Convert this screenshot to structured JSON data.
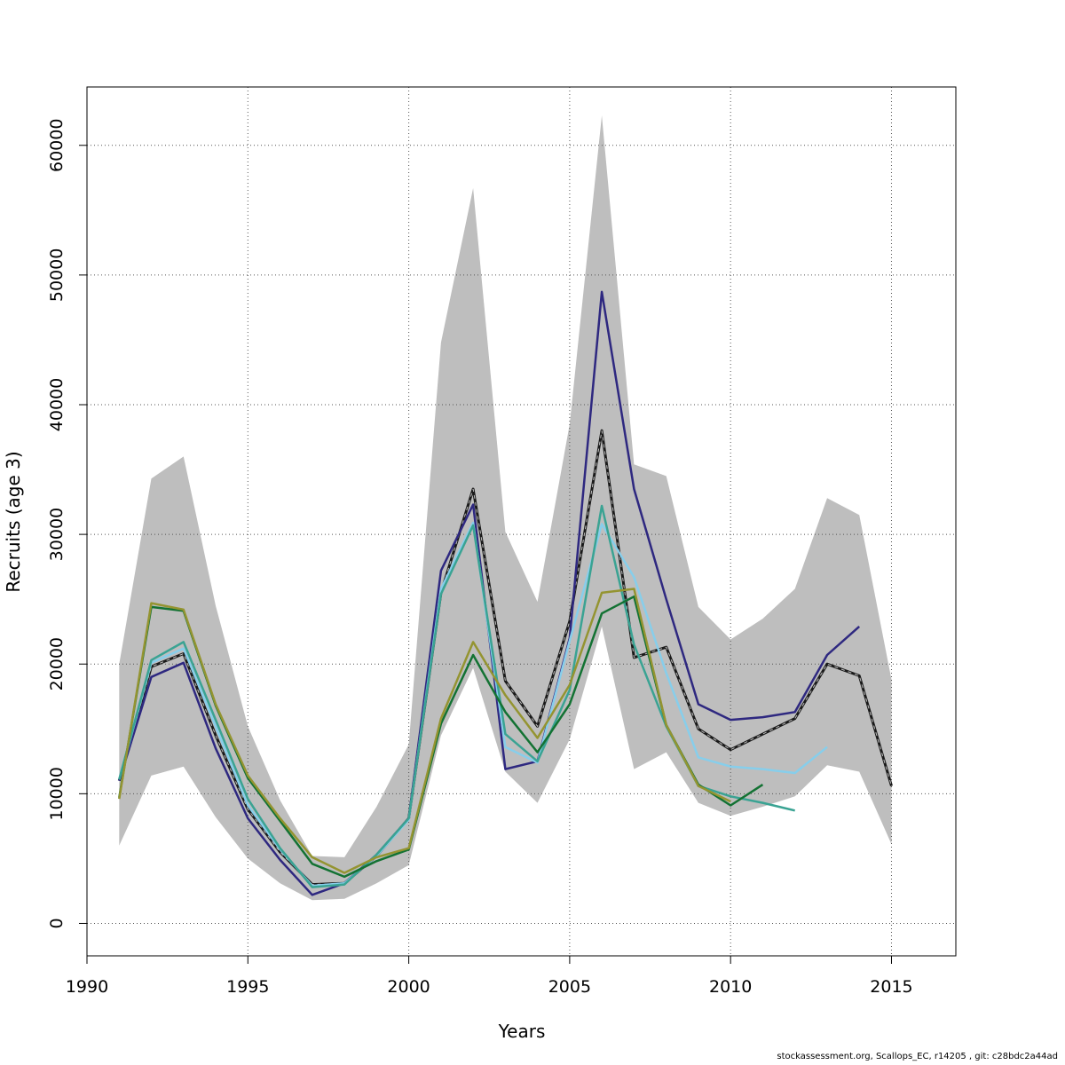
{
  "chart_data": {
    "type": "line",
    "xlabel": "Years",
    "ylabel": "Recruits (age 3)",
    "xlim": [
      1990,
      2017
    ],
    "ylim": [
      -2500,
      64500
    ],
    "x_ticks": [
      1990,
      1995,
      2000,
      2005,
      2010,
      2015
    ],
    "y_ticks": [
      0,
      10000,
      20000,
      30000,
      40000,
      50000,
      60000
    ],
    "grid": true,
    "grid_style": "dotted",
    "band": {
      "fill_color": "#bebebe",
      "x": [
        1991,
        1992,
        1993,
        1994,
        1995,
        1996,
        1997,
        1998,
        1999,
        2000,
        2001,
        2002,
        2003,
        2004,
        2005,
        2006,
        2007,
        2008,
        2009,
        2010,
        2011,
        2012,
        2013,
        2014,
        2015
      ],
      "upper": [
        20000,
        34300,
        36000,
        24500,
        15200,
        9500,
        5200,
        5100,
        9000,
        13800,
        44800,
        56700,
        30200,
        24800,
        38500,
        62300,
        35400,
        34500,
        24400,
        21900,
        23500,
        25800,
        32800,
        31500,
        18800
      ],
      "lower": [
        6000,
        11400,
        12100,
        8200,
        5000,
        3100,
        1800,
        1900,
        3100,
        4500,
        14500,
        19700,
        11700,
        9300,
        14200,
        22900,
        11900,
        13200,
        9300,
        8300,
        9000,
        9800,
        12200,
        11700,
        6100
      ]
    },
    "series": [
      {
        "color": "#1a1a1a",
        "dashed": true,
        "x": [
          1991,
          1992,
          1993,
          1994,
          1995,
          1996,
          1997,
          1998,
          1999,
          2000,
          2001,
          2002,
          2003,
          2004,
          2005,
          2006,
          2007,
          2008,
          2009,
          2010,
          2011,
          2012,
          2013,
          2014,
          2015
        ],
        "values": [
          11000,
          19800,
          20800,
          14500,
          8800,
          5500,
          3000,
          3100,
          5200,
          8100,
          25500,
          33500,
          18700,
          15200,
          23300,
          38000,
          20500,
          21300,
          15000,
          13400,
          14600,
          15800,
          20000,
          19100,
          10600
        ]
      },
      {
        "color": "#2e2880",
        "x": [
          1991,
          1992,
          1993,
          1994,
          1995,
          1996,
          1997,
          1998,
          1999,
          2000,
          2001,
          2002,
          2003,
          2004,
          2005,
          2006,
          2007,
          2008,
          2009,
          2010,
          2011,
          2012,
          2013,
          2014
        ],
        "values": [
          11000,
          19000,
          20100,
          13500,
          8100,
          4900,
          2200,
          3100,
          5300,
          8100,
          27200,
          32300,
          11900,
          12500,
          22000,
          48700,
          33500,
          25000,
          16900,
          15700,
          15900,
          16300,
          20700,
          22900
        ]
      },
      {
        "color": "#87ceeb",
        "x": [
          1991,
          1992,
          1993,
          1994,
          1995,
          1996,
          1997,
          1998,
          1999,
          2000,
          2001,
          2002,
          2003,
          2004,
          2005,
          2006,
          2007,
          2008,
          2009,
          2010,
          2011,
          2012,
          2013
        ],
        "values": [
          11100,
          20100,
          21200,
          15200,
          9100,
          5700,
          2900,
          3100,
          5200,
          8000,
          25800,
          30900,
          13600,
          12400,
          21800,
          30800,
          26700,
          19300,
          12800,
          12100,
          11900,
          11600,
          13600
        ]
      },
      {
        "color": "#3aa393",
        "x": [
          1991,
          1992,
          1993,
          1994,
          1995,
          1996,
          1997,
          1998,
          1999,
          2000,
          2001,
          2002,
          2003,
          2004,
          2005,
          2006,
          2007,
          2008,
          2009,
          2010,
          2011,
          2012
        ],
        "values": [
          11100,
          20300,
          21700,
          15700,
          9600,
          5800,
          2800,
          3000,
          5300,
          8100,
          25400,
          30700,
          14600,
          12500,
          18000,
          32200,
          21500,
          15200,
          10600,
          9800,
          9300,
          8700
        ]
      },
      {
        "color": "#137233",
        "x": [
          1991,
          1992,
          1993,
          1994,
          1995,
          1996,
          1997,
          1998,
          1999,
          2000,
          2001,
          2002,
          2003,
          2004,
          2005,
          2006,
          2007,
          2008,
          2009,
          2010,
          2011
        ],
        "values": [
          9700,
          24400,
          24100,
          16800,
          11200,
          7900,
          4600,
          3600,
          4800,
          5700,
          15400,
          20700,
          16300,
          13200,
          16900,
          23900,
          25200,
          15300,
          10700,
          9100,
          10700
        ]
      },
      {
        "color": "#949431",
        "x": [
          1991,
          1992,
          1993,
          1994,
          1995,
          1996,
          1997,
          1998,
          1999,
          2000,
          2001,
          2002,
          2003,
          2004,
          2005,
          2006,
          2007,
          2008,
          2009,
          2010
        ],
        "values": [
          9600,
          24700,
          24200,
          16900,
          11400,
          8100,
          5100,
          3900,
          5100,
          5800,
          15800,
          21700,
          17600,
          14300,
          18400,
          25500,
          25800,
          15300,
          10600,
          9400
        ]
      }
    ]
  },
  "footer_text": "stockassessment.org, Scallops_EC, r14205 , git: c28bdc2a44ad"
}
